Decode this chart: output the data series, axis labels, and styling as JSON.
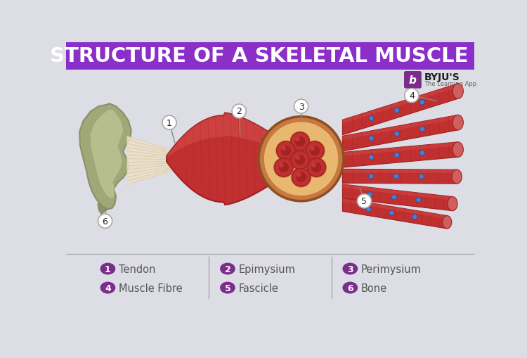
{
  "title": "STRUCTURE OF A SKELETAL MUSCLE",
  "title_color": "#ffffff",
  "title_bg_color": "#8B2FC9",
  "bg_color": "#DDDDE5",
  "legend_items": [
    {
      "num": "1",
      "label": "Tendon"
    },
    {
      "num": "2",
      "label": "Epimysium"
    },
    {
      "num": "3",
      "label": "Perimysium"
    },
    {
      "num": "4",
      "label": "Muscle Fibre"
    },
    {
      "num": "5",
      "label": "Fascicle"
    },
    {
      "num": "6",
      "label": "Bone"
    }
  ],
  "legend_bullet_color": "#7B2D8B",
  "legend_text_color": "#555555",
  "byju_purple": "#7B2D8B",
  "muscle_red_dark": "#A02020",
  "muscle_red": "#C03030",
  "muscle_red_light": "#D85050",
  "muscle_red_lighter": "#E87070",
  "tendon_light": "#EDE0C8",
  "tendon_mid": "#D8C8A0",
  "bone_dark": "#8A9068",
  "bone_mid": "#A0A878",
  "bone_light": "#C0C898",
  "perimysium_outer": "#C87840",
  "perimysium_inner": "#E8B870",
  "separator_color": "#aaaaaa",
  "callout_line_color": "#888888",
  "blue_dot": "#4A7FD0"
}
